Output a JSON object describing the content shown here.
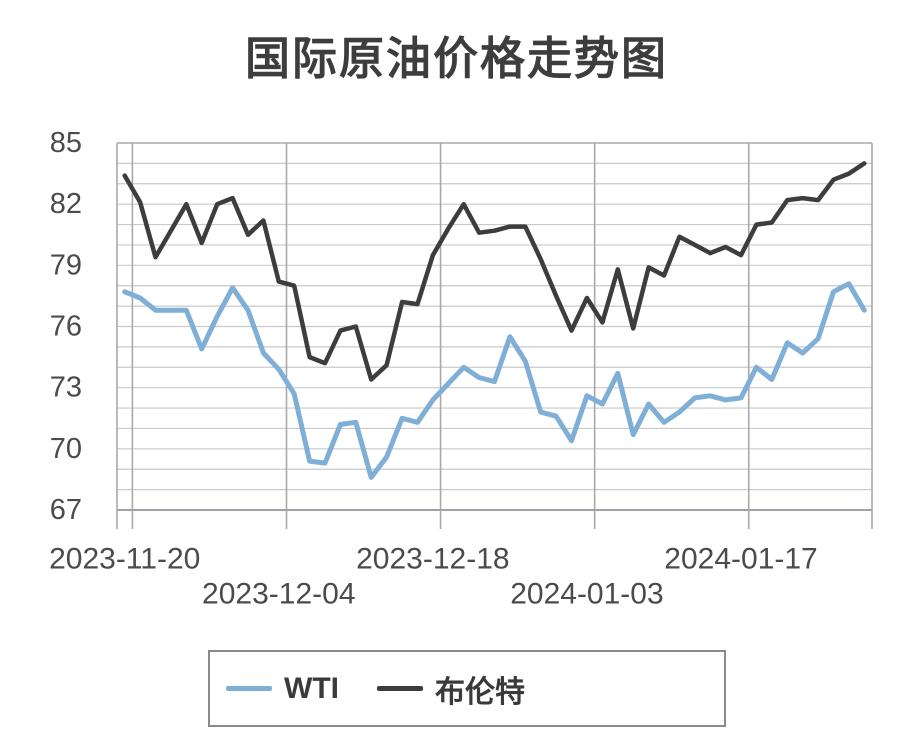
{
  "page": {
    "title": "国际原油价格走势图"
  },
  "chart_data": {
    "type": "line",
    "title": "国际原油价格走势图",
    "x_point_count": 49,
    "x_tick_labels": [
      {
        "label": "2023-11-20",
        "index": 0,
        "row": 1
      },
      {
        "label": "2023-12-04",
        "index": 10,
        "row": 2
      },
      {
        "label": "2023-12-18",
        "index": 20,
        "row": 1
      },
      {
        "label": "2024-01-03",
        "index": 30,
        "row": 2
      },
      {
        "label": "2024-01-17",
        "index": 40,
        "row": 1
      }
    ],
    "y_tick_labels": [
      85,
      82,
      79,
      76,
      73,
      70,
      67
    ],
    "ylim": [
      67,
      85
    ],
    "y_grid_step": 1,
    "vertical_gridline_categories": [
      1,
      11,
      21,
      31,
      41
    ],
    "grid": "on",
    "legend": {
      "position": "bottom",
      "items": [
        {
          "label": "WTI",
          "color": "#7fafd6"
        },
        {
          "label": "布伦特",
          "color": "#3d3d3d"
        }
      ]
    },
    "series": [
      {
        "name": "WTI",
        "color": "#7fafd6",
        "width": 5,
        "values": [
          77.7,
          77.4,
          76.8,
          76.8,
          76.8,
          74.9,
          76.5,
          77.9,
          76.8,
          74.7,
          73.9,
          72.7,
          69.4,
          69.3,
          71.2,
          71.3,
          68.6,
          69.6,
          71.5,
          71.3,
          72.4,
          73.2,
          74.0,
          73.5,
          73.3,
          75.5,
          74.3,
          71.8,
          71.6,
          70.4,
          72.6,
          72.2,
          73.7,
          70.7,
          72.2,
          71.3,
          71.8,
          72.5,
          72.6,
          72.4,
          72.5,
          74.0,
          73.4,
          75.2,
          74.7,
          75.4,
          77.7,
          78.1,
          76.8
        ]
      },
      {
        "name": "布伦特",
        "color": "#3d3d3d",
        "width": 4.5,
        "values": [
          83.4,
          82.1,
          79.4,
          80.7,
          82.0,
          80.1,
          82.0,
          82.3,
          80.5,
          81.2,
          78.2,
          78.0,
          74.5,
          74.2,
          75.8,
          76.0,
          73.4,
          74.1,
          77.2,
          77.1,
          79.5,
          80.8,
          82.0,
          80.6,
          80.7,
          80.9,
          80.9,
          79.3,
          77.5,
          75.8,
          77.4,
          76.2,
          78.8,
          75.9,
          78.9,
          78.5,
          80.4,
          80.0,
          79.6,
          79.9,
          79.5,
          81.0,
          81.1,
          82.2,
          82.3,
          82.2,
          83.2,
          83.5,
          84.0
        ]
      }
    ]
  },
  "colors": {
    "background": "#ffffff",
    "grid_light": "#c9c9c9",
    "grid_major": "#a9a9a9",
    "axis": "#9da2a8",
    "label": "#4b4b4b",
    "title": "#3d3d3d",
    "legend_border": "#8a8a8a",
    "legend_text": "#3a3a3a"
  }
}
